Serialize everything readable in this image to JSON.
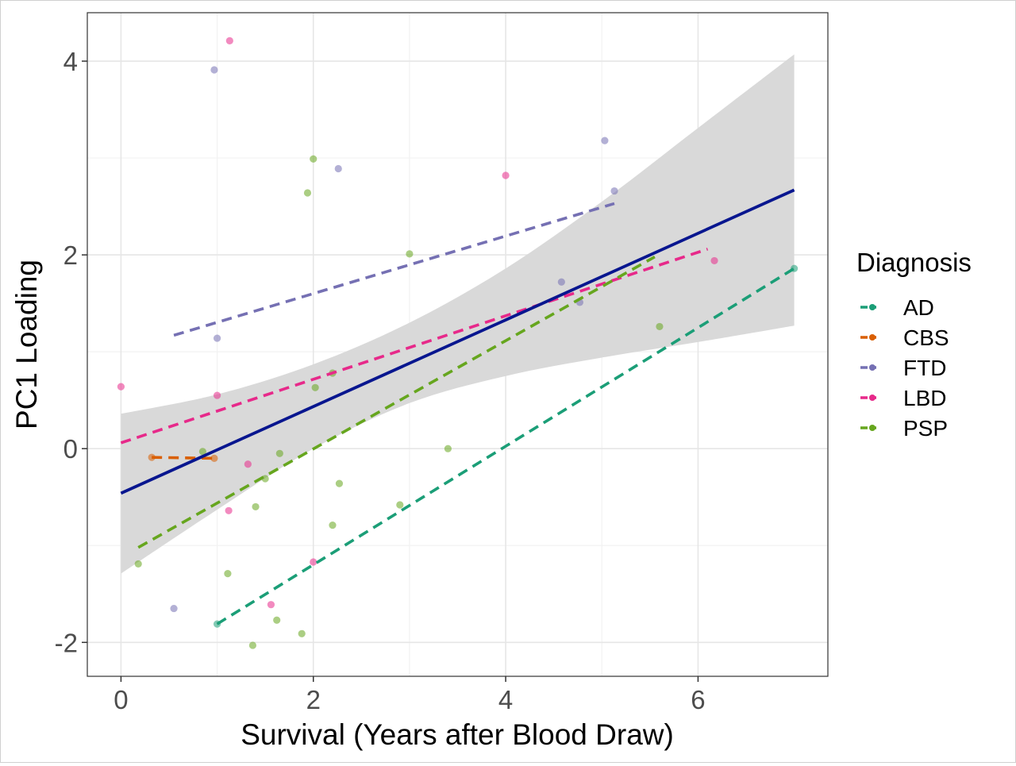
{
  "chart_data": {
    "type": "scatter",
    "title": "",
    "xlabel": "Survival (Years after Blood Draw)",
    "ylabel": "PC1 Loading",
    "xlim": [
      -0.35,
      7.35
    ],
    "ylim": [
      -2.35,
      4.5
    ],
    "x_ticks": [
      0,
      2,
      4,
      6
    ],
    "y_ticks": [
      -2,
      0,
      2,
      4
    ],
    "x_tick_labels": [
      "0",
      "2",
      "4",
      "6"
    ],
    "y_tick_labels": [
      "-2",
      "0",
      "2",
      "4"
    ],
    "grid": true,
    "legend": {
      "title": "Diagnosis",
      "placement": "right",
      "entries": [
        "AD",
        "CBS",
        "FTD",
        "LBD",
        "PSP"
      ]
    },
    "colors": {
      "AD": "#1b9e77",
      "CBS": "#d95f02",
      "FTD": "#7570b3",
      "LBD": "#e7298a",
      "PSP": "#66a61e",
      "overall_fit": "#08168f",
      "confidence_band": "#d9d9d9"
    },
    "series": [
      {
        "name": "AD",
        "points": [
          [
            1.0,
            -1.81
          ],
          [
            7.0,
            1.86
          ]
        ],
        "fit": [
          [
            1.0,
            -1.81
          ],
          [
            7.0,
            1.86
          ]
        ]
      },
      {
        "name": "CBS",
        "points": [
          [
            0.32,
            -0.09
          ],
          [
            0.97,
            -0.1
          ]
        ],
        "fit": [
          [
            0.32,
            -0.09
          ],
          [
            0.97,
            -0.1
          ]
        ]
      },
      {
        "name": "FTD",
        "points": [
          [
            0.97,
            3.91
          ],
          [
            2.26,
            2.89
          ],
          [
            5.03,
            3.18
          ],
          [
            5.13,
            2.66
          ],
          [
            4.58,
            1.72
          ],
          [
            4.77,
            1.51
          ],
          [
            1.0,
            1.14
          ],
          [
            0.55,
            -1.65
          ]
        ],
        "fit": [
          [
            0.55,
            1.17
          ],
          [
            5.13,
            2.53
          ]
        ]
      },
      {
        "name": "LBD",
        "points": [
          [
            1.13,
            4.21
          ],
          [
            4.0,
            2.82
          ],
          [
            6.17,
            1.94
          ],
          [
            0.0,
            0.64
          ],
          [
            1.0,
            0.55
          ],
          [
            1.32,
            -0.16
          ],
          [
            1.12,
            -0.64
          ],
          [
            2.0,
            -1.17
          ],
          [
            1.56,
            -1.61
          ]
        ],
        "fit": [
          [
            0.0,
            0.06
          ],
          [
            6.1,
            2.06
          ]
        ]
      },
      {
        "name": "PSP",
        "points": [
          [
            2.0,
            2.99
          ],
          [
            1.94,
            2.64
          ],
          [
            3.0,
            2.01
          ],
          [
            2.02,
            0.63
          ],
          [
            2.2,
            0.78
          ],
          [
            0.85,
            -0.03
          ],
          [
            1.65,
            -0.05
          ],
          [
            1.5,
            -0.31
          ],
          [
            2.27,
            -0.36
          ],
          [
            1.4,
            -0.6
          ],
          [
            2.9,
            -0.58
          ],
          [
            3.4,
            0.0
          ],
          [
            2.2,
            -0.79
          ],
          [
            1.11,
            -1.29
          ],
          [
            0.18,
            -1.19
          ],
          [
            1.62,
            -1.77
          ],
          [
            1.88,
            -1.91
          ],
          [
            1.37,
            -2.03
          ],
          [
            5.6,
            1.26
          ]
        ],
        "fit": [
          [
            0.18,
            -1.02
          ],
          [
            5.55,
            1.98
          ]
        ]
      }
    ],
    "overall_fit": [
      [
        0.0,
        -0.46
      ],
      [
        7.0,
        2.67
      ]
    ],
    "confidence_band": {
      "x": [
        0.0,
        1.0,
        2.0,
        3.0,
        4.0,
        5.0,
        6.0,
        7.0
      ],
      "lower": [
        -1.29,
        -0.63,
        0.0,
        0.47,
        0.75,
        0.94,
        1.1,
        1.27
      ],
      "upper": [
        0.36,
        0.56,
        0.87,
        1.3,
        1.86,
        2.55,
        3.31,
        4.07
      ]
    }
  }
}
